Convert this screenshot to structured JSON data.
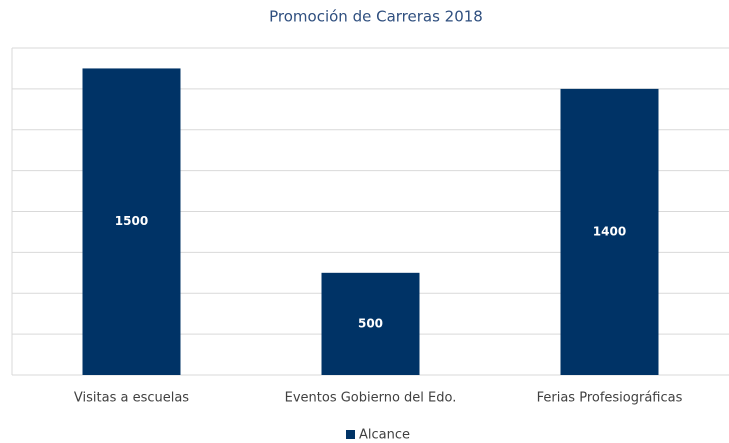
{
  "chart_data": {
    "type": "bar",
    "title": "Promoción de Carreras 2018",
    "categories": [
      "Visitas a escuelas",
      "Eventos Gobierno del Edo.",
      "Ferias Profesiográficas"
    ],
    "series": [
      {
        "name": "Alcance",
        "color": "#003366",
        "values": [
          1500,
          500,
          1400
        ]
      }
    ],
    "ylim": [
      0,
      1600
    ],
    "yticks": [
      0,
      200,
      400,
      600,
      800,
      1000,
      1200,
      1400,
      1600
    ],
    "grid": true,
    "legend": "bottom"
  }
}
